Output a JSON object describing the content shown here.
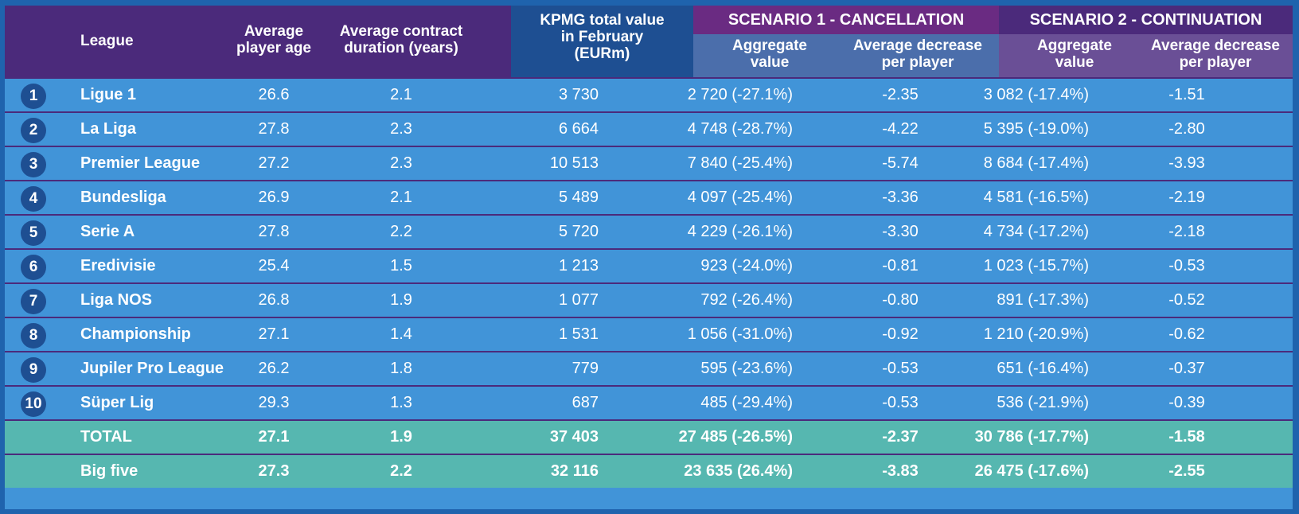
{
  "header": {
    "league": "League",
    "age_l1": "Average",
    "age_l2": "player age",
    "dur_l1": "Average contract",
    "dur_l2": "duration (years)",
    "kpmg_l1": "KPMG total value",
    "kpmg_l2": "in February",
    "kpmg_l3": "(EURm)",
    "s1_title": "SCENARIO 1 - CANCELLATION",
    "s2_title": "SCENARIO 2 - CONTINUATION",
    "agg_l1": "Aggregate",
    "agg_l2": "value",
    "dec_l1": "Average decrease",
    "dec_l2": "per player"
  },
  "rows": [
    {
      "rank": "1",
      "league": "Ligue 1",
      "age": "26.6",
      "duration": "2.1",
      "kpmg": "3 730",
      "s1_aggregate": "2 720 (-27.1%)",
      "s1_decrease": "-2.35",
      "s2_aggregate": "3 082 (-17.4%)",
      "s2_decrease": "-1.51"
    },
    {
      "rank": "2",
      "league": "La Liga",
      "age": "27.8",
      "duration": "2.3",
      "kpmg": "6 664",
      "s1_aggregate": "4 748 (-28.7%)",
      "s1_decrease": "-4.22",
      "s2_aggregate": "5 395 (-19.0%)",
      "s2_decrease": "-2.80"
    },
    {
      "rank": "3",
      "league": "Premier League",
      "age": "27.2",
      "duration": "2.3",
      "kpmg": "10 513",
      "s1_aggregate": "7 840 (-25.4%)",
      "s1_decrease": "-5.74",
      "s2_aggregate": "8 684 (-17.4%)",
      "s2_decrease": "-3.93"
    },
    {
      "rank": "4",
      "league": "Bundesliga",
      "age": "26.9",
      "duration": "2.1",
      "kpmg": "5 489",
      "s1_aggregate": "4 097 (-25.4%)",
      "s1_decrease": "-3.36",
      "s2_aggregate": "4 581 (-16.5%)",
      "s2_decrease": "-2.19"
    },
    {
      "rank": "5",
      "league": "Serie A",
      "age": "27.8",
      "duration": "2.2",
      "kpmg": "5 720",
      "s1_aggregate": "4 229 (-26.1%)",
      "s1_decrease": "-3.30",
      "s2_aggregate": "4 734 (-17.2%)",
      "s2_decrease": "-2.18"
    },
    {
      "rank": "6",
      "league": "Eredivisie",
      "age": "25.4",
      "duration": "1.5",
      "kpmg": "1 213",
      "s1_aggregate": "923 (-24.0%)",
      "s1_decrease": "-0.81",
      "s2_aggregate": "1 023 (-15.7%)",
      "s2_decrease": "-0.53"
    },
    {
      "rank": "7",
      "league": "Liga NOS",
      "age": "26.8",
      "duration": "1.9",
      "kpmg": "1 077",
      "s1_aggregate": "792 (-26.4%)",
      "s1_decrease": "-0.80",
      "s2_aggregate": "891 (-17.3%)",
      "s2_decrease": "-0.52"
    },
    {
      "rank": "8",
      "league": "Championship",
      "age": "27.1",
      "duration": "1.4",
      "kpmg": "1 531",
      "s1_aggregate": "1 056 (-31.0%)",
      "s1_decrease": "-0.92",
      "s2_aggregate": "1 210 (-20.9%)",
      "s2_decrease": "-0.62"
    },
    {
      "rank": "9",
      "league": "Jupiler Pro League",
      "age": "26.2",
      "duration": "1.8",
      "kpmg": "779",
      "s1_aggregate": "595 (-23.6%)",
      "s1_decrease": "-0.53",
      "s2_aggregate": "651 (-16.4%)",
      "s2_decrease": "-0.37"
    },
    {
      "rank": "10",
      "league": "Süper Lig",
      "age": "29.3",
      "duration": "1.3",
      "kpmg": "687",
      "s1_aggregate": "485 (-29.4%)",
      "s1_decrease": "-0.53",
      "s2_aggregate": "536 (-21.9%)",
      "s2_decrease": "-0.39"
    }
  ],
  "totals": [
    {
      "league": "TOTAL",
      "age": "27.1",
      "duration": "1.9",
      "kpmg": "37 403",
      "s1_aggregate": "27 485 (-26.5%)",
      "s1_decrease": "-2.37",
      "s2_aggregate": "30 786 (-17.7%)",
      "s2_decrease": "-1.58"
    },
    {
      "league": "Big five",
      "age": "27.3",
      "duration": "2.2",
      "kpmg": "32 116",
      "s1_aggregate": "23 635 (26.4%)",
      "s1_decrease": "-3.83",
      "s2_aggregate": "26 475 (-17.6%)",
      "s2_decrease": "-2.55"
    }
  ],
  "colors": {
    "frame": "#1f63ad",
    "body": "#4194d8",
    "header_purple": "#4b2a7b",
    "header_kpmg": "#1e4f92",
    "s1_title": "#6a2b82",
    "s1_sub": "#4b6eab",
    "s2_sub": "#6a4f96",
    "total_rows": "#56b7b0",
    "rank_badge": "#1e4f92"
  }
}
